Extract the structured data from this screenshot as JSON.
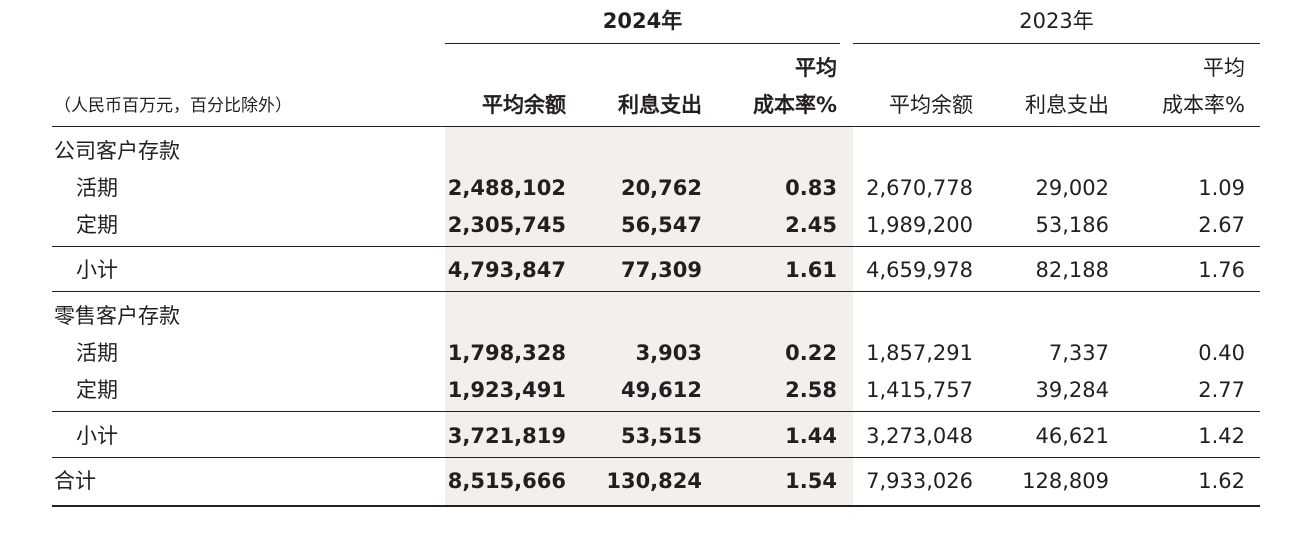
{
  "header": {
    "year_2024": "2024年",
    "year_2023": "2023年",
    "unit_note": "（人民币百万元，百分比除外）",
    "col_avg_balance": "平均余额",
    "col_interest_expense": "利息支出",
    "col_avg_cost_rate_line1": "平均",
    "col_avg_cost_rate_line2": "成本率%"
  },
  "rows": [
    {
      "type": "section",
      "label": "公司客户存款"
    },
    {
      "type": "item",
      "label": "活期",
      "v2024": [
        "2,488,102",
        "20,762",
        "0.83"
      ],
      "v2023": [
        "2,670,778",
        "29,002",
        "1.09"
      ]
    },
    {
      "type": "item",
      "label": "定期",
      "v2024": [
        "2,305,745",
        "56,547",
        "2.45"
      ],
      "v2023": [
        "1,989,200",
        "53,186",
        "2.67"
      ]
    },
    {
      "type": "subtotal",
      "label": "小计",
      "v2024": [
        "4,793,847",
        "77,309",
        "1.61"
      ],
      "v2023": [
        "4,659,978",
        "82,188",
        "1.76"
      ]
    },
    {
      "type": "section",
      "label": "零售客户存款"
    },
    {
      "type": "item",
      "label": "活期",
      "v2024": [
        "1,798,328",
        "3,903",
        "0.22"
      ],
      "v2023": [
        "1,857,291",
        "7,337",
        "0.40"
      ]
    },
    {
      "type": "item",
      "label": "定期",
      "v2024": [
        "1,923,491",
        "49,612",
        "2.58"
      ],
      "v2023": [
        "1,415,757",
        "39,284",
        "2.77"
      ]
    },
    {
      "type": "subtotal",
      "label": "小计",
      "v2024": [
        "3,721,819",
        "53,515",
        "1.44"
      ],
      "v2023": [
        "3,273,048",
        "46,621",
        "1.42"
      ]
    },
    {
      "type": "total",
      "label": "合计",
      "v2024": [
        "8,515,666",
        "130,824",
        "1.54"
      ],
      "v2023": [
        "7,933,026",
        "128,809",
        "1.62"
      ]
    }
  ]
}
